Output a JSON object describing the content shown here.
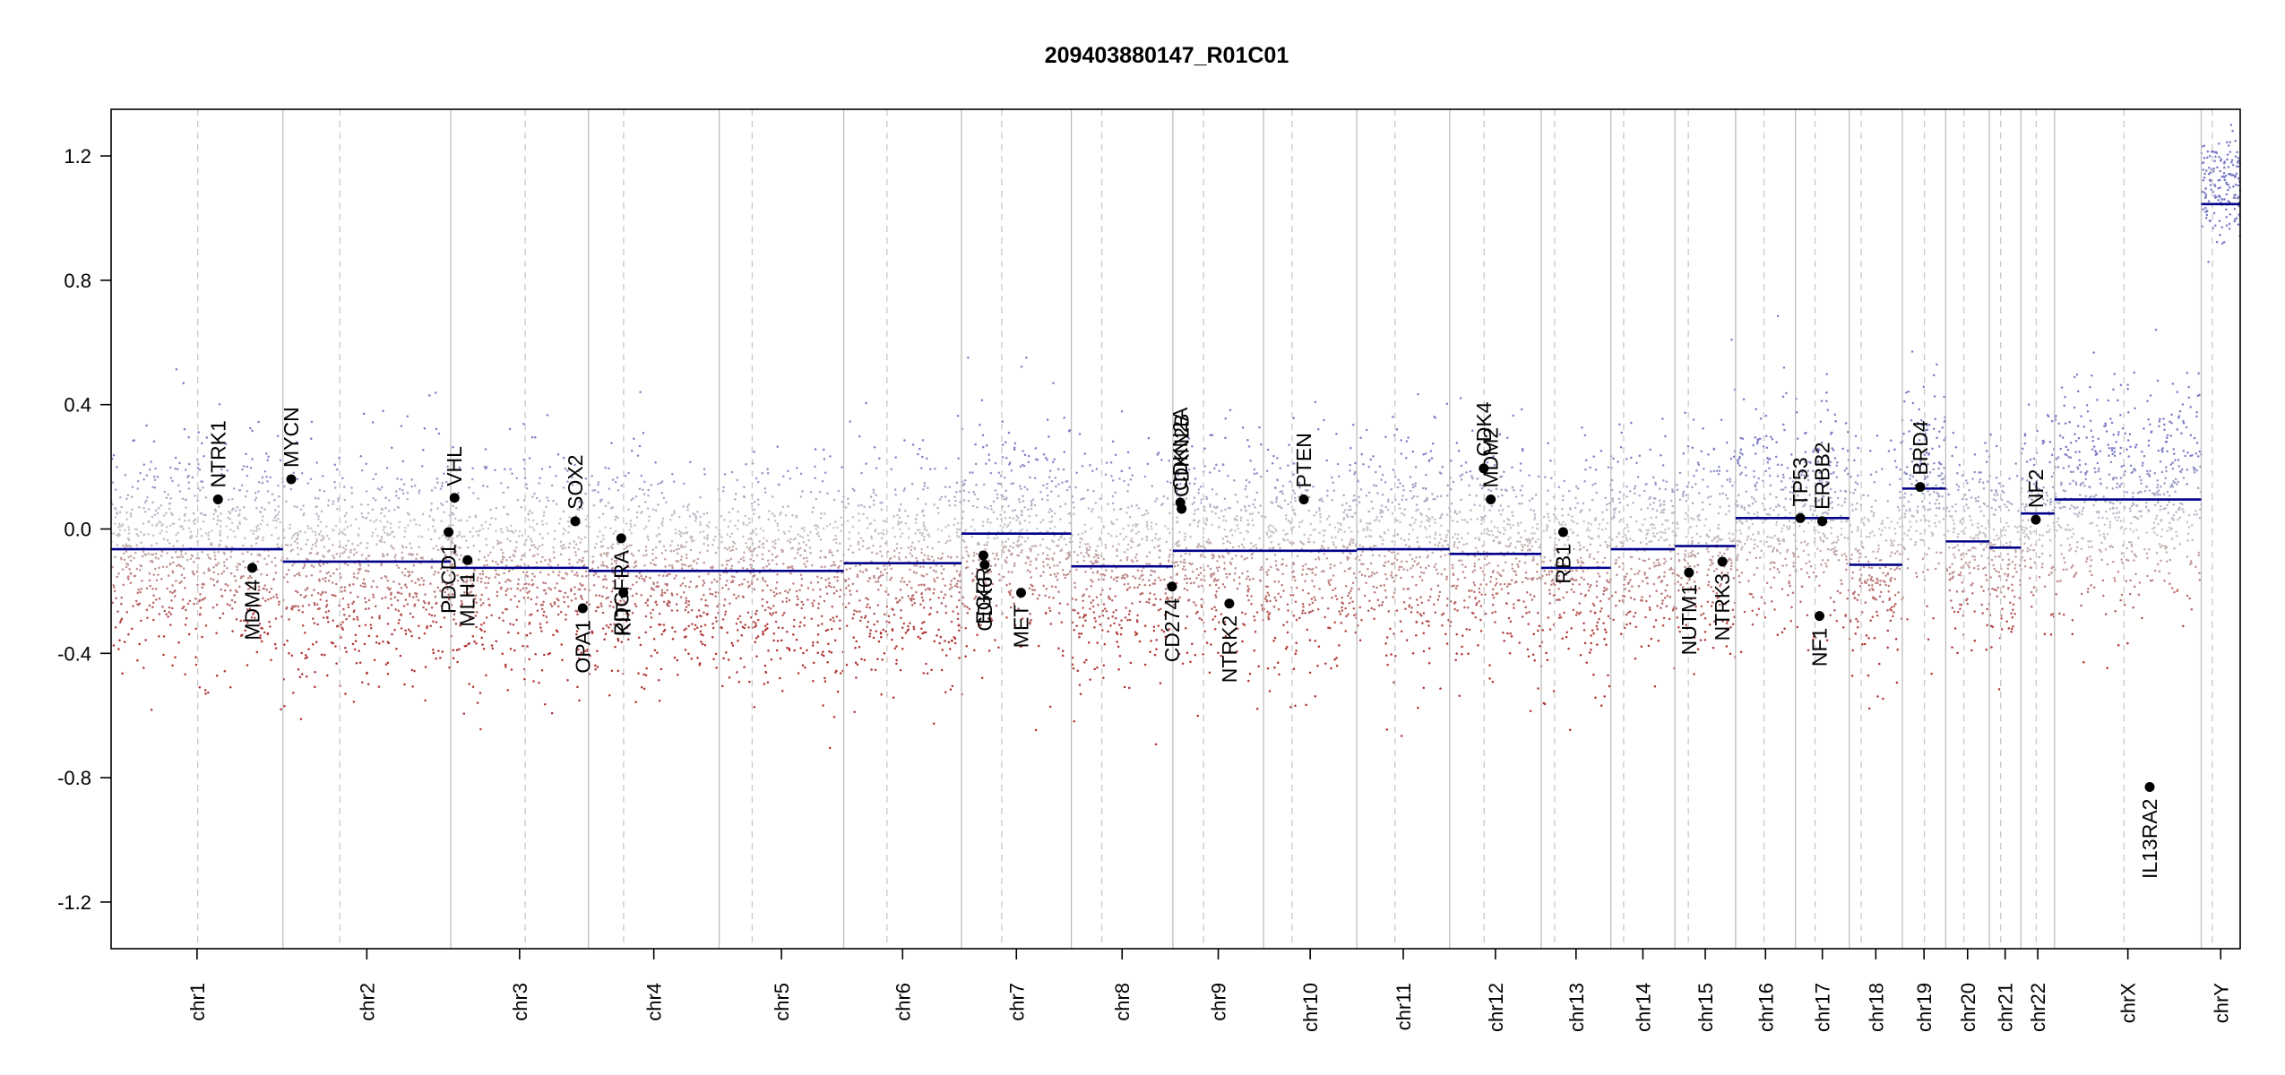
{
  "chart_data": {
    "type": "scatter",
    "title": "209403880147_R01C01",
    "xlabel": "",
    "ylabel": "",
    "ylim": [
      -1.35,
      1.35
    ],
    "y_ticks": [
      {
        "value": 1.2,
        "label": "1.2"
      },
      {
        "value": 0.8,
        "label": "0.8"
      },
      {
        "value": 0.4,
        "label": "0.4"
      },
      {
        "value": 0.0,
        "label": "0.0"
      },
      {
        "value": -0.4,
        "label": "-0.4"
      },
      {
        "value": -0.8,
        "label": "-0.8"
      },
      {
        "value": -1.2,
        "label": "-1.2"
      }
    ],
    "grid": false,
    "colors": {
      "gain": "#7b7bc8",
      "neutral": "#c8c8c8",
      "loss": "#b03030",
      "segment": "#00008b",
      "gene_dot": "#000000",
      "boundary": "#bdbdbd",
      "centromere": "#c8c8c8"
    },
    "chromosomes": [
      {
        "name": "chr1",
        "start": 0.0,
        "end": 0.0807,
        "centromere": 0.0407,
        "segments": [
          {
            "start": 0.0,
            "end": 0.0807,
            "value": -0.065
          }
        ]
      },
      {
        "name": "chr2",
        "start": 0.0807,
        "end": 0.1595,
        "centromere": 0.1074,
        "segments": [
          {
            "start": 0.0807,
            "end": 0.1595,
            "value": -0.105
          }
        ]
      },
      {
        "name": "chr3",
        "start": 0.1595,
        "end": 0.2242,
        "centromere": 0.1945,
        "segments": [
          {
            "start": 0.1595,
            "end": 0.2242,
            "value": -0.125
          }
        ]
      },
      {
        "name": "chr4",
        "start": 0.2242,
        "end": 0.2856,
        "centromere": 0.2407,
        "segments": [
          {
            "start": 0.2242,
            "end": 0.2856,
            "value": -0.135
          }
        ]
      },
      {
        "name": "chr5",
        "start": 0.2856,
        "end": 0.3441,
        "centromere": 0.3011,
        "segments": [
          {
            "start": 0.2856,
            "end": 0.3441,
            "value": -0.135
          }
        ]
      },
      {
        "name": "chr6",
        "start": 0.3441,
        "end": 0.3994,
        "centromere": 0.3644,
        "segments": [
          {
            "start": 0.3441,
            "end": 0.3994,
            "value": -0.11
          }
        ]
      },
      {
        "name": "chr7",
        "start": 0.3994,
        "end": 0.451,
        "centromere": 0.4183,
        "segments": [
          {
            "start": 0.3994,
            "end": 0.451,
            "value": -0.015
          }
        ]
      },
      {
        "name": "chr8",
        "start": 0.451,
        "end": 0.4987,
        "centromere": 0.4653,
        "segments": [
          {
            "start": 0.451,
            "end": 0.4987,
            "value": -0.12
          }
        ]
      },
      {
        "name": "chr9",
        "start": 0.4987,
        "end": 0.5413,
        "centromere": 0.5131,
        "segments": [
          {
            "start": 0.4987,
            "end": 0.5413,
            "value": -0.07
          }
        ]
      },
      {
        "name": "chr10",
        "start": 0.5413,
        "end": 0.5851,
        "centromere": 0.5547,
        "segments": [
          {
            "start": 0.5413,
            "end": 0.5851,
            "value": -0.07
          }
        ]
      },
      {
        "name": "chr11",
        "start": 0.5851,
        "end": 0.6287,
        "centromere": 0.603,
        "segments": [
          {
            "start": 0.5851,
            "end": 0.6287,
            "value": -0.065
          }
        ]
      },
      {
        "name": "chr12",
        "start": 0.6287,
        "end": 0.6717,
        "centromere": 0.6449,
        "segments": [
          {
            "start": 0.6287,
            "end": 0.6717,
            "value": -0.08
          }
        ]
      },
      {
        "name": "chr13",
        "start": 0.6717,
        "end": 0.7044,
        "centromere": 0.678,
        "segments": [
          {
            "start": 0.6717,
            "end": 0.7044,
            "value": -0.125
          }
        ]
      },
      {
        "name": "chr14",
        "start": 0.7044,
        "end": 0.7345,
        "centromere": 0.7104,
        "segments": [
          {
            "start": 0.7044,
            "end": 0.7345,
            "value": -0.065
          }
        ]
      },
      {
        "name": "chr15",
        "start": 0.7345,
        "end": 0.763,
        "centromere": 0.7408,
        "segments": [
          {
            "start": 0.7345,
            "end": 0.763,
            "value": -0.055
          }
        ]
      },
      {
        "name": "chr16",
        "start": 0.763,
        "end": 0.7911,
        "centromere": 0.7763,
        "segments": [
          {
            "start": 0.763,
            "end": 0.7911,
            "value": 0.035
          }
        ]
      },
      {
        "name": "chr17",
        "start": 0.7911,
        "end": 0.8164,
        "centromere": 0.8003,
        "segments": [
          {
            "start": 0.7911,
            "end": 0.8164,
            "value": 0.035
          }
        ]
      },
      {
        "name": "chr18",
        "start": 0.8164,
        "end": 0.8413,
        "centromere": 0.822,
        "segments": [
          {
            "start": 0.8164,
            "end": 0.8413,
            "value": -0.115
          }
        ]
      },
      {
        "name": "chr19",
        "start": 0.8413,
        "end": 0.8617,
        "centromere": 0.8517,
        "segments": [
          {
            "start": 0.8413,
            "end": 0.8617,
            "value": 0.13
          }
        ]
      },
      {
        "name": "chr20",
        "start": 0.8617,
        "end": 0.8822,
        "centromere": 0.8702,
        "segments": [
          {
            "start": 0.8617,
            "end": 0.8822,
            "value": -0.04
          }
        ]
      },
      {
        "name": "chr21",
        "start": 0.8822,
        "end": 0.897,
        "centromere": 0.8875,
        "segments": [
          {
            "start": 0.8822,
            "end": 0.897,
            "value": -0.06
          }
        ]
      },
      {
        "name": "chr22",
        "start": 0.897,
        "end": 0.9128,
        "centromere": 0.9042,
        "segments": [
          {
            "start": 0.897,
            "end": 0.9128,
            "value": 0.05
          }
        ]
      },
      {
        "name": "chrX",
        "start": 0.9128,
        "end": 0.9817,
        "centromere": 0.9454,
        "segments": [
          {
            "start": 0.9128,
            "end": 0.9817,
            "value": 0.095
          }
        ]
      },
      {
        "name": "chrY",
        "start": 0.9817,
        "end": 1.0,
        "centromere": 0.9869,
        "segments": [
          {
            "start": 0.9817,
            "end": 1.0,
            "value": 1.045
          }
        ]
      }
    ],
    "genes": [
      {
        "name": "NTRK1",
        "x": 0.0502,
        "y": 0.095,
        "label": "above"
      },
      {
        "name": "MDM4",
        "x": 0.0663,
        "y": -0.125,
        "label": "below"
      },
      {
        "name": "MYCN",
        "x": 0.0846,
        "y": 0.16,
        "label": "above"
      },
      {
        "name": "VHL",
        "x": 0.1613,
        "y": 0.1,
        "label": "above"
      },
      {
        "name": "PDCD1",
        "x": 0.1585,
        "y": -0.01,
        "label": "below"
      },
      {
        "name": "MLH1",
        "x": 0.1674,
        "y": -0.1,
        "label": "below"
      },
      {
        "name": "SOX2",
        "x": 0.218,
        "y": 0.025,
        "label": "above"
      },
      {
        "name": "OPA1",
        "x": 0.2215,
        "y": -0.255,
        "label": "below"
      },
      {
        "name": "PDGFRA",
        "x": 0.2396,
        "y": -0.03,
        "label": "below"
      },
      {
        "name": "KIT",
        "x": 0.2406,
        "y": -0.205,
        "label": "below"
      },
      {
        "name": "EGFR",
        "x": 0.4097,
        "y": -0.085,
        "label": "below"
      },
      {
        "name": "CDK6",
        "x": 0.4103,
        "y": -0.115,
        "label": "below"
      },
      {
        "name": "MET",
        "x": 0.4274,
        "y": -0.205,
        "label": "below"
      },
      {
        "name": "CD274",
        "x": 0.4983,
        "y": -0.185,
        "label": "below"
      },
      {
        "name": "CDKN2A",
        "x": 0.5022,
        "y": 0.085,
        "label": "above"
      },
      {
        "name": "CDKN2B",
        "x": 0.5028,
        "y": 0.065,
        "label": "above"
      },
      {
        "name": "NTRK2",
        "x": 0.5252,
        "y": -0.24,
        "label": "below"
      },
      {
        "name": "PTEN",
        "x": 0.5602,
        "y": 0.095,
        "label": "above"
      },
      {
        "name": "CDK4",
        "x": 0.6447,
        "y": 0.195,
        "label": "above"
      },
      {
        "name": "MDM2",
        "x": 0.648,
        "y": 0.095,
        "label": "above"
      },
      {
        "name": "RB1",
        "x": 0.682,
        "y": -0.01,
        "label": "below"
      },
      {
        "name": "NUTM1",
        "x": 0.7411,
        "y": -0.14,
        "label": "below"
      },
      {
        "name": "NTRK3",
        "x": 0.7568,
        "y": -0.105,
        "label": "below"
      },
      {
        "name": "TP53",
        "x": 0.7934,
        "y": 0.035,
        "label": "above"
      },
      {
        "name": "NF1",
        "x": 0.8024,
        "y": -0.28,
        "label": "below"
      },
      {
        "name": "ERBB2",
        "x": 0.8037,
        "y": 0.025,
        "label": "above"
      },
      {
        "name": "BRD4",
        "x": 0.8497,
        "y": 0.135,
        "label": "above"
      },
      {
        "name": "NF2",
        "x": 0.904,
        "y": 0.03,
        "label": "above"
      },
      {
        "name": "IL13RA2",
        "x": 0.9575,
        "y": -0.83,
        "label": "below"
      }
    ]
  }
}
